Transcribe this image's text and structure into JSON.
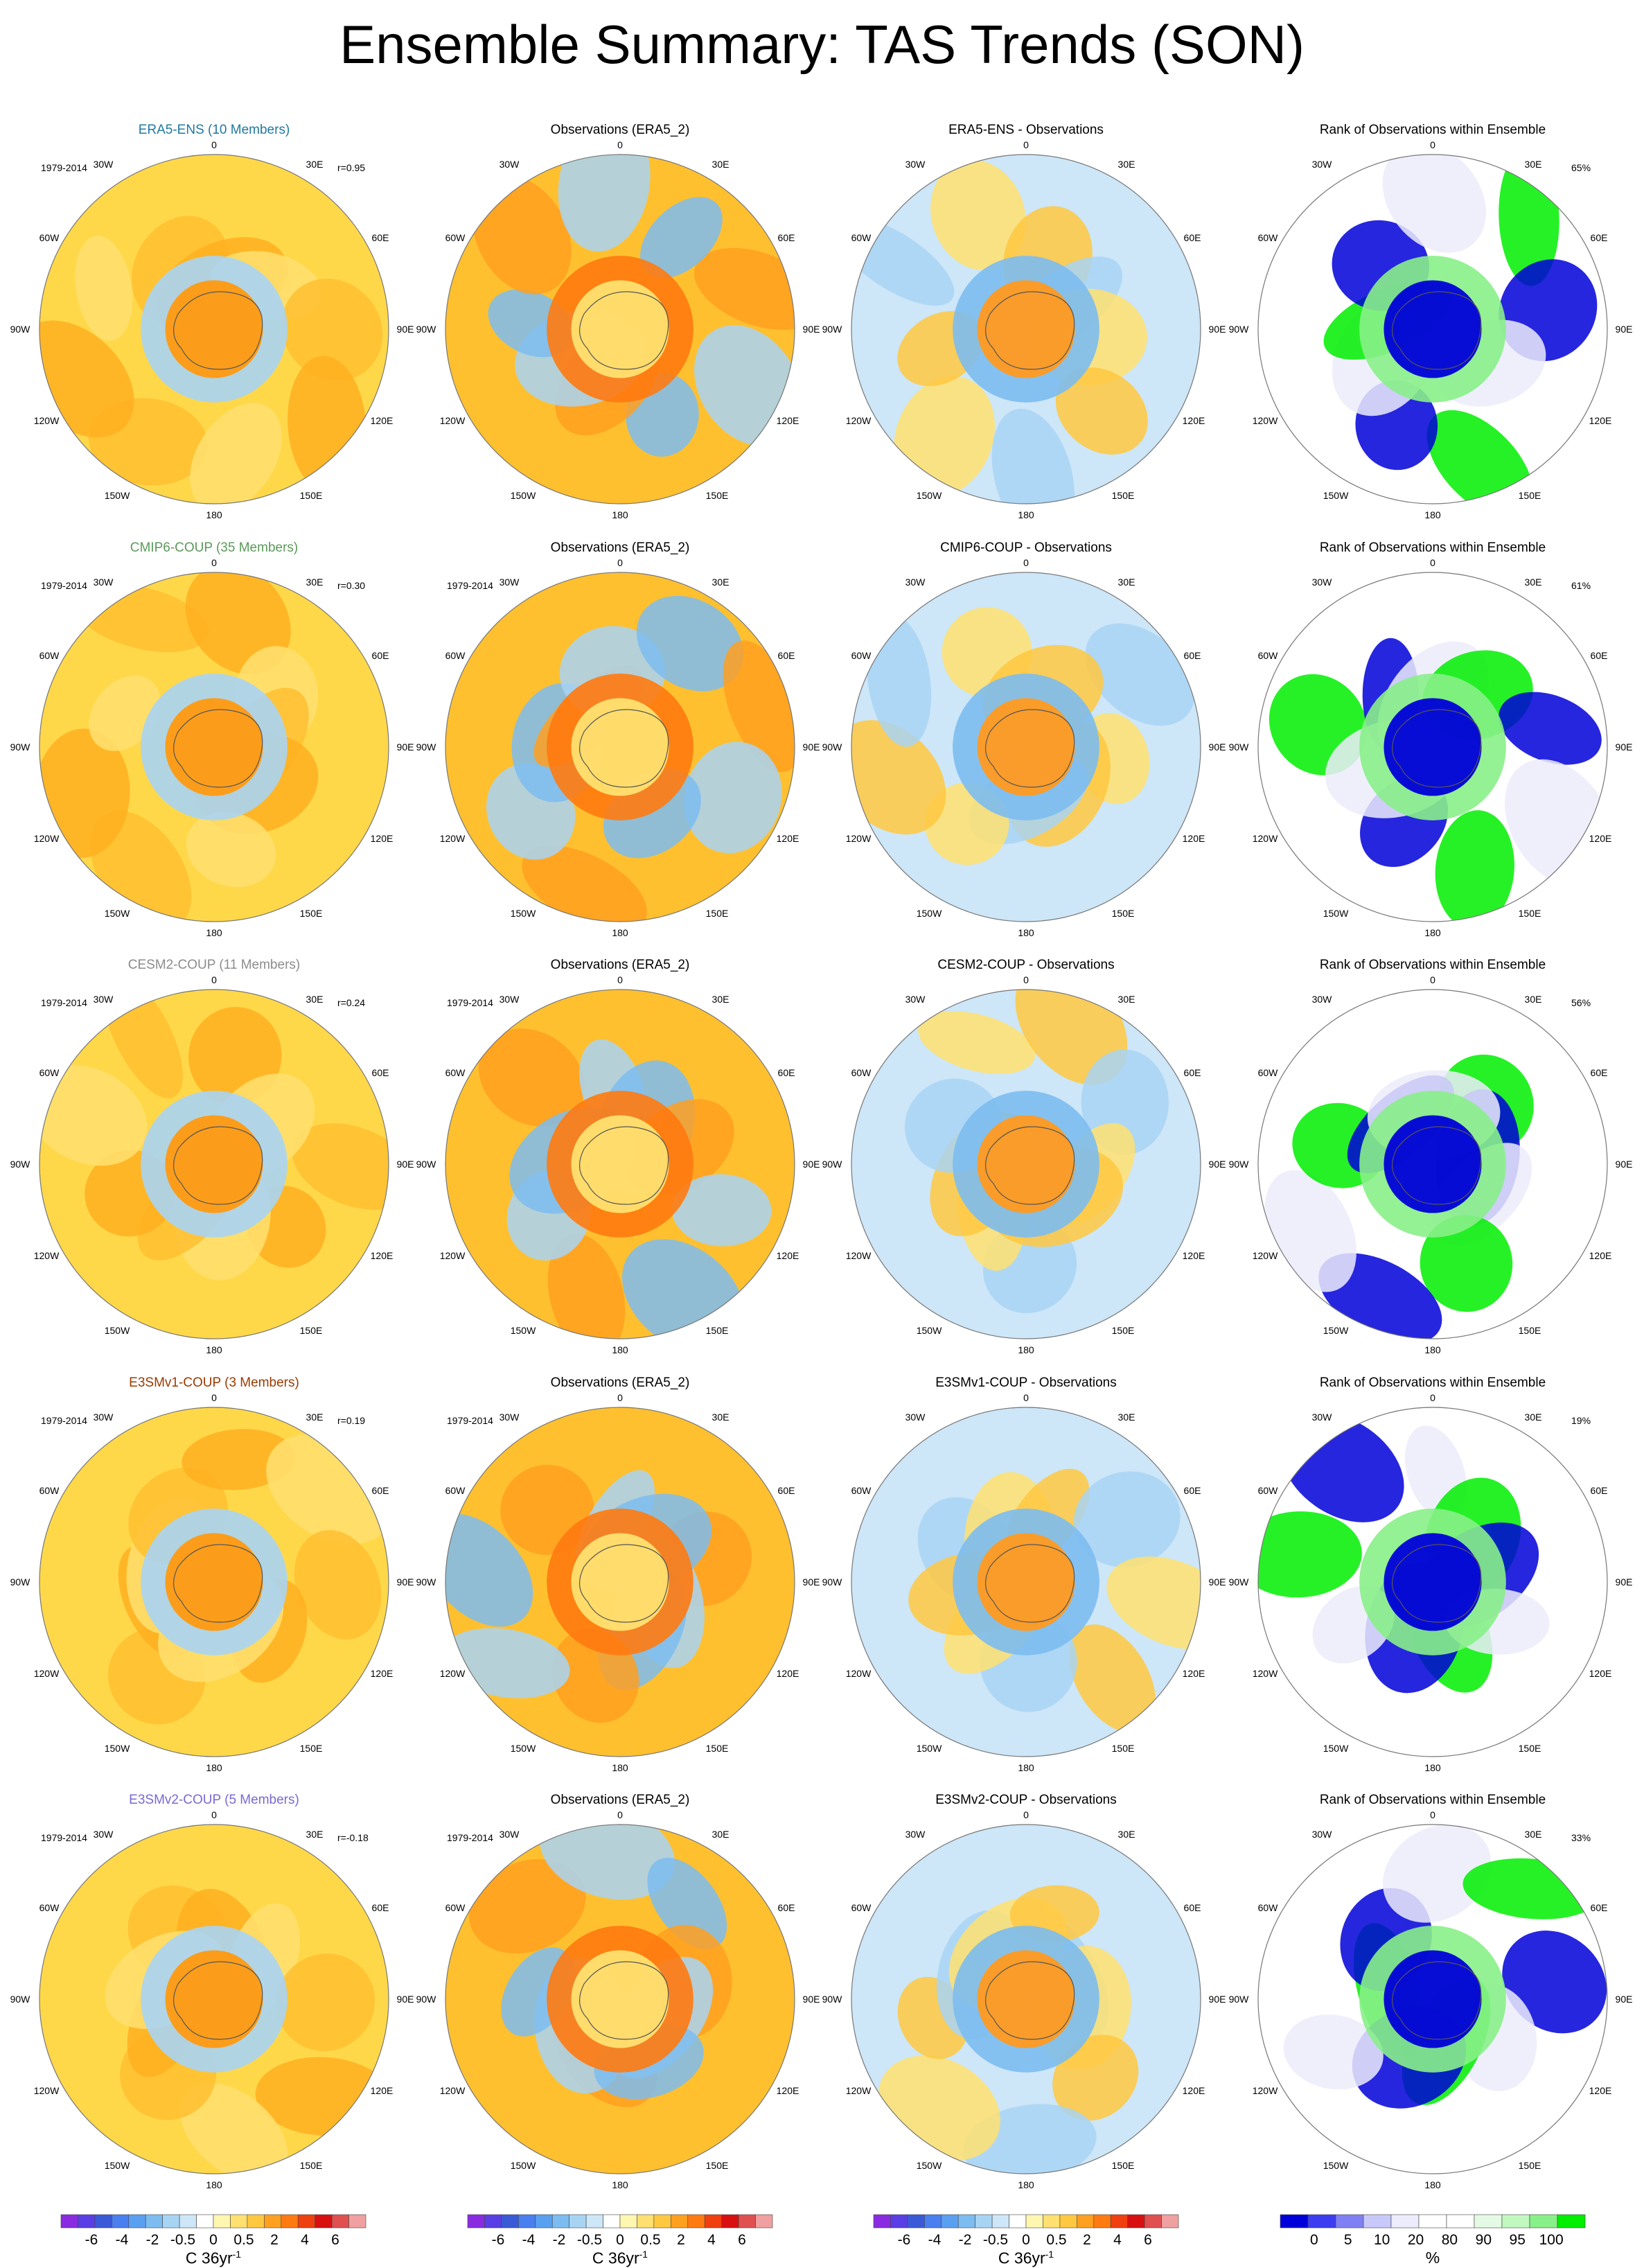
{
  "title": "Ensemble Summary: TAS Trends (SON)",
  "period_label": "1979-2014",
  "longitude_labels": {
    "top": "0",
    "bottom": "180",
    "left_top": "30W",
    "right_top": "30E",
    "left_upper": "60W",
    "right_upper": "60E",
    "left_mid": "90W",
    "right_mid": "90E",
    "left_lower": "120W",
    "right_lower": "120E",
    "left_bottom": "150W",
    "right_bottom": "150E"
  },
  "colors": {
    "era5_ens": "#1f78a0",
    "cmip6": "#5a9a5a",
    "cesm2": "#8c8c8c",
    "e3smv1": "#9a3a00",
    "e3smv2": "#7b68d4"
  },
  "rows": [
    {
      "ensemble_title": "ERA5-ENS (10 Members)",
      "ensemble_color": "#1f78a0",
      "correlation": "r=0.95",
      "obs_title": "Observations (ERA5_2)",
      "diff_title": "ERA5-ENS - Observations",
      "rank_title": "Rank of Observations within Ensemble",
      "rank_percent": "65%",
      "show_obs_period": false
    },
    {
      "ensemble_title": "CMIP6-COUP (35 Members)",
      "ensemble_color": "#5a9a5a",
      "correlation": "r=0.30",
      "obs_title": "Observations (ERA5_2)",
      "diff_title": "CMIP6-COUP - Observations",
      "rank_title": "Rank of Observations within Ensemble",
      "rank_percent": "61%",
      "show_obs_period": true
    },
    {
      "ensemble_title": "CESM2-COUP (11 Members)",
      "ensemble_color": "#8c8c8c",
      "correlation": "r=0.24",
      "obs_title": "Observations (ERA5_2)",
      "diff_title": "CESM2-COUP - Observations",
      "rank_title": "Rank of Observations within Ensemble",
      "rank_percent": "56%",
      "show_obs_period": true
    },
    {
      "ensemble_title": "E3SMv1-COUP (3 Members)",
      "ensemble_color": "#9a3a00",
      "correlation": "r=0.19",
      "obs_title": "Observations (ERA5_2)",
      "diff_title": "E3SMv1-COUP - Observations",
      "rank_title": "Rank of Observations within Ensemble",
      "rank_percent": "19%",
      "show_obs_period": true
    },
    {
      "ensemble_title": "E3SMv2-COUP (5 Members)",
      "ensemble_color": "#7b68d4",
      "correlation": "r=-0.18",
      "obs_title": "Observations (ERA5_2)",
      "diff_title": "E3SMv2-COUP - Observations",
      "rank_title": "Rank of Observations within Ensemble",
      "rank_percent": "33%",
      "show_obs_period": true
    }
  ],
  "trend_colorbar": {
    "unit": "C 36yr",
    "unit_superscript": "-1",
    "tick_labels": [
      "-6",
      "-4",
      "-2",
      "-0.5",
      "0",
      "0.5",
      "2",
      "4",
      "6"
    ],
    "colors": [
      "#8a2be2",
      "#5a3ee6",
      "#3a5ad8",
      "#4a7ff0",
      "#5aa0f0",
      "#7cbcf0",
      "#a8d4f4",
      "#cde6f8",
      "#ffffff",
      "#fff6b0",
      "#ffe070",
      "#ffc840",
      "#ffa020",
      "#ff7a10",
      "#f04010",
      "#d81010",
      "#e05050",
      "#f0a0a0"
    ]
  },
  "rank_colorbar": {
    "unit": "%",
    "tick_labels": [
      "0",
      "5",
      "10",
      "20",
      "80",
      "90",
      "95",
      "100"
    ],
    "colors": [
      "#0000d8",
      "#3c3cf0",
      "#8080f4",
      "#c8c8fa",
      "#ececfc",
      "#ffffff",
      "#ffffff",
      "#e4fae4",
      "#c0f8c0",
      "#88f088",
      "#00ee00"
    ]
  }
}
